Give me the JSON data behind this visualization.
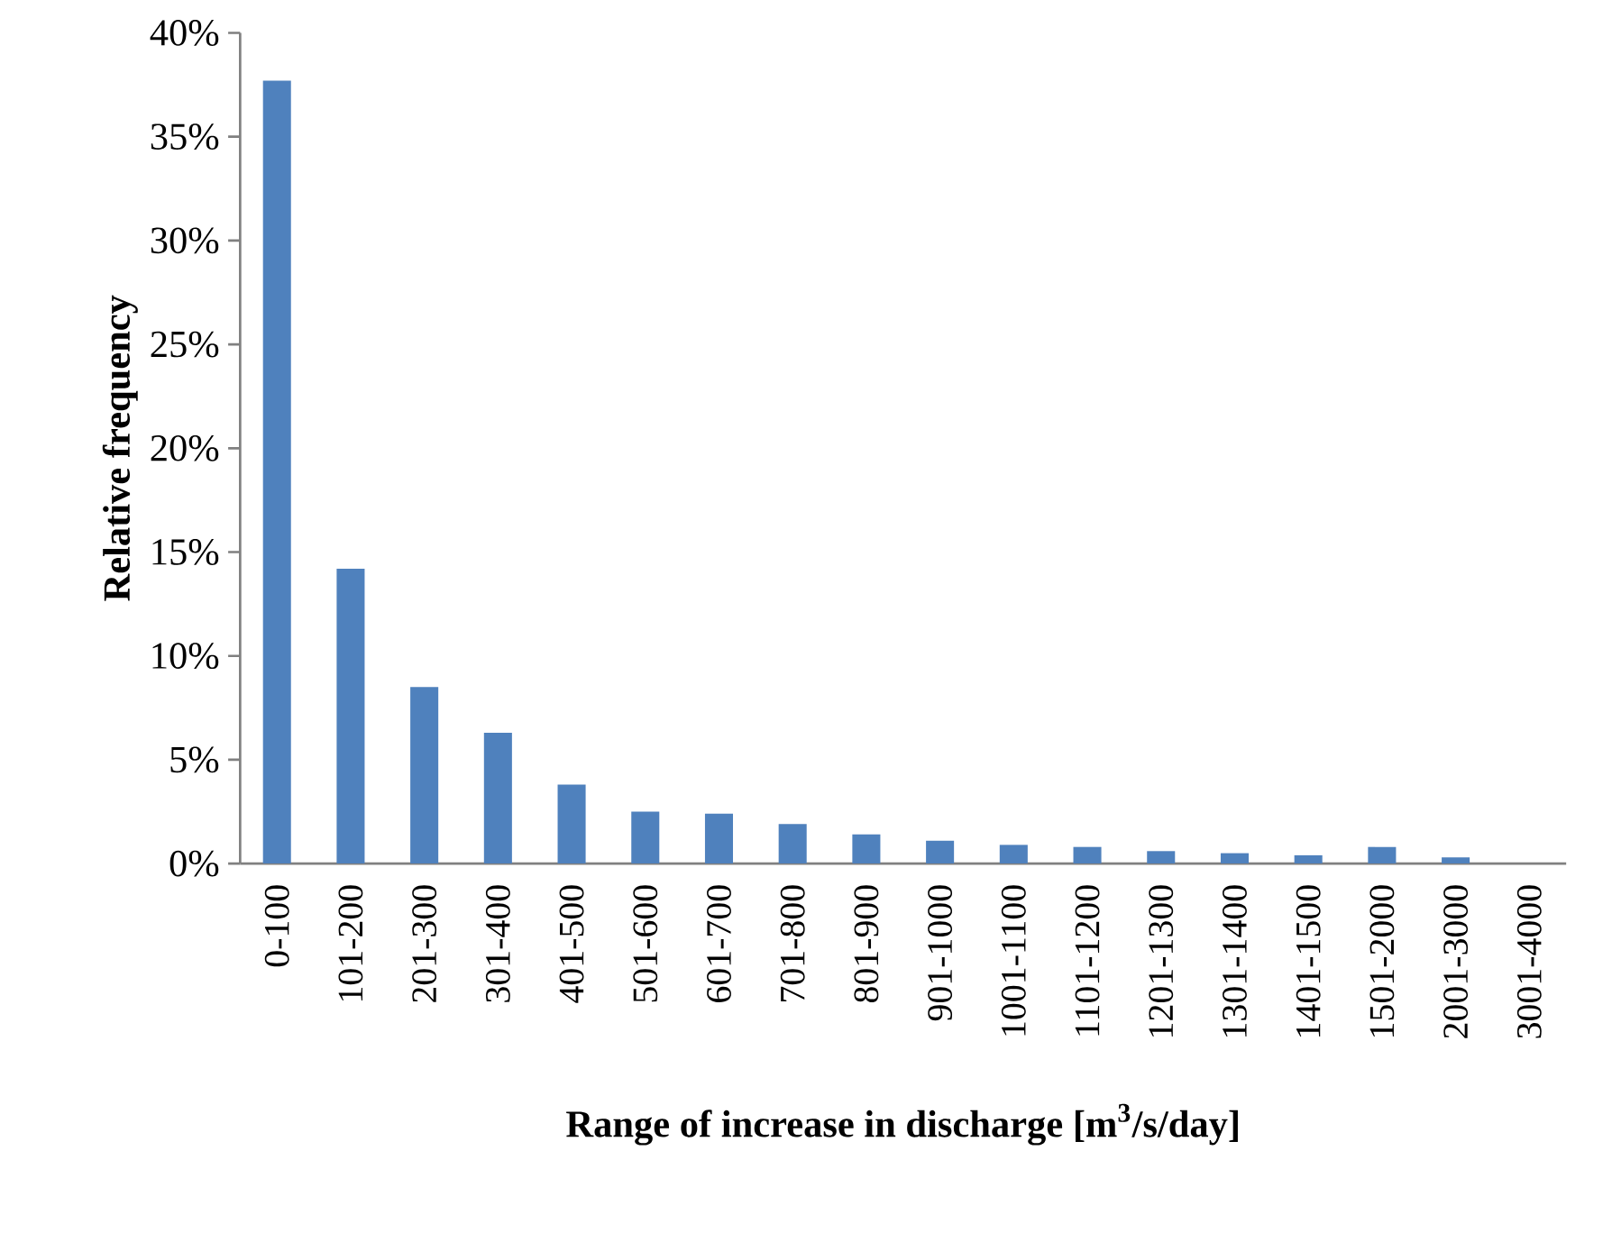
{
  "chart_data": {
    "type": "bar",
    "xlabel": "Range of increase in discharge [m$^{3}$/s/day]",
    "ylabel": "Relative frequency",
    "categories": [
      "0-100",
      "101-200",
      "201-300",
      "301-400",
      "401-500",
      "501-600",
      "601-700",
      "701-800",
      "801-900",
      "901-1000",
      "1001-1100",
      "1101-1200",
      "1201-1300",
      "1301-1400",
      "1401-1500",
      "1501-2000",
      "2001-3000",
      "3001-4000"
    ],
    "values": [
      37.7,
      14.2,
      8.5,
      6.3,
      3.8,
      2.5,
      2.4,
      1.9,
      1.4,
      1.1,
      0.9,
      0.8,
      0.6,
      0.5,
      0.4,
      0.8,
      0.3,
      0
    ],
    "color": "#4f81bd",
    "ylim": [
      0,
      40
    ],
    "yticks": [
      {
        "value": 0,
        "label": "0%"
      },
      {
        "value": 5,
        "label": "5%"
      },
      {
        "value": 10,
        "label": "10%"
      },
      {
        "value": 15,
        "label": "15%"
      },
      {
        "value": 20,
        "label": "20%"
      },
      {
        "value": 25,
        "label": "25%"
      },
      {
        "value": 30,
        "label": "30%"
      },
      {
        "value": 35,
        "label": "35%"
      },
      {
        "value": 40,
        "label": "40%"
      }
    ],
    "grid": false
  }
}
